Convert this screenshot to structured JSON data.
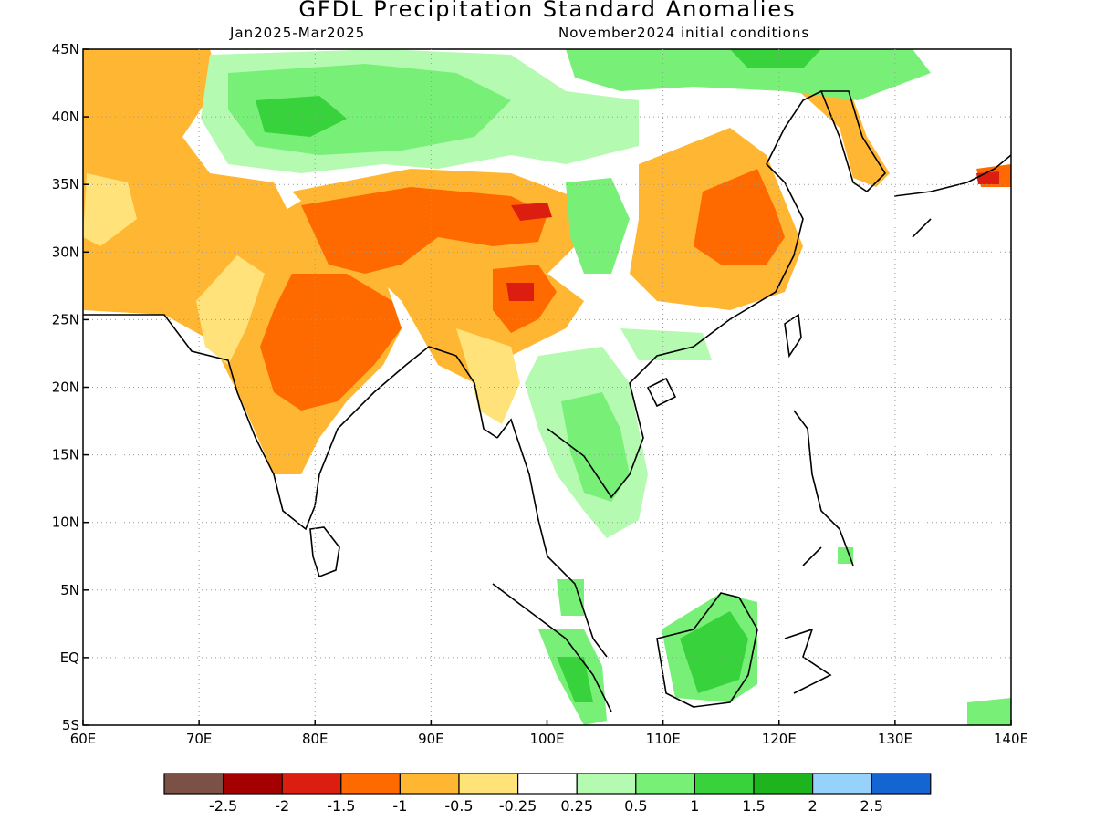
{
  "title": "GFDL Precipitation Standard Anomalies",
  "period": "Jan2025-Mar2025",
  "init": "November2024 initial conditions",
  "map": {
    "lon_range": [
      60,
      140
    ],
    "lat_range": [
      -5,
      45
    ],
    "lon_ticks": [
      {
        "value": 60,
        "label": "60E"
      },
      {
        "value": 70,
        "label": "70E"
      },
      {
        "value": 80,
        "label": "80E"
      },
      {
        "value": 90,
        "label": "90E"
      },
      {
        "value": 100,
        "label": "100E"
      },
      {
        "value": 110,
        "label": "110E"
      },
      {
        "value": 120,
        "label": "120E"
      },
      {
        "value": 130,
        "label": "130E"
      },
      {
        "value": 140,
        "label": "140E"
      }
    ],
    "lat_ticks": [
      {
        "value": 45,
        "label": "45N"
      },
      {
        "value": 40,
        "label": "40N"
      },
      {
        "value": 35,
        "label": "35N"
      },
      {
        "value": 30,
        "label": "30N"
      },
      {
        "value": 25,
        "label": "25N"
      },
      {
        "value": 20,
        "label": "20N"
      },
      {
        "value": 15,
        "label": "15N"
      },
      {
        "value": 10,
        "label": "10N"
      },
      {
        "value": 5,
        "label": "5N"
      },
      {
        "value": 0,
        "label": "EQ"
      },
      {
        "value": -5,
        "label": "5S"
      }
    ]
  },
  "colorbar": {
    "colors": [
      "#7a5144",
      "#a50000",
      "#dc1e10",
      "#ff6a00",
      "#ffb733",
      "#ffe37a",
      "#ffffff",
      "#b4fab0",
      "#78f078",
      "#37d23c",
      "#1eb41e",
      "#96d2fa",
      "#1464d2"
    ],
    "labels": [
      "-2.5",
      "-2",
      "-1.5",
      "-1",
      "-0.5",
      "-0.25",
      "0.25",
      "0.5",
      "1",
      "1.5",
      "2",
      "2.5"
    ]
  }
}
